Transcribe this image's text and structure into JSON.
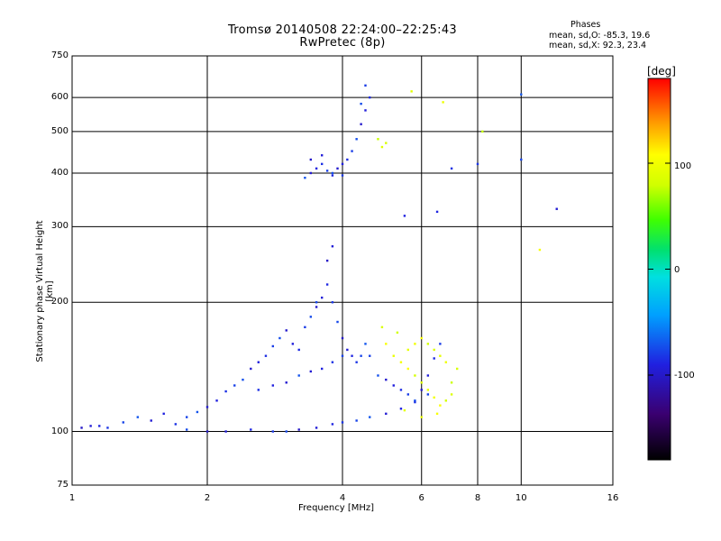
{
  "header": {
    "title_line1": "Tromsø 20140508 22:24:00–22:25:43",
    "title_line2": "RwPretec (8p)",
    "phases_heading": "Phases",
    "phases_O": "mean, sd,O: -85.3, 19.6",
    "phases_X": "mean, sd,X:  92.3, 23.4"
  },
  "colorbar": {
    "unit": "[deg]",
    "ticks": [
      "100",
      "0",
      "-100"
    ],
    "range": [
      -180,
      180
    ]
  },
  "chart_data": {
    "type": "scatter",
    "title": "Tromsø 20140508 22:24:00–22:25:43",
    "subtitle": "RwPretec (8p)",
    "xlabel": "Frequency [MHz]",
    "ylabel": "Stationary phase Virtual Height [km]",
    "xscale": "log",
    "yscale": "log",
    "xlim": [
      1,
      16
    ],
    "ylim": [
      75,
      750
    ],
    "x_ticks": [
      "1",
      "2",
      "4",
      "6",
      "8",
      "10",
      "16"
    ],
    "x_tick_values": [
      1,
      2,
      4,
      6,
      8,
      10,
      16
    ],
    "y_ticks": [
      "75",
      "100",
      "200",
      "300",
      "400",
      "500",
      "600",
      "750"
    ],
    "y_tick_values": [
      75,
      100,
      200,
      300,
      400,
      500,
      600,
      750
    ],
    "grid": true,
    "color_by": "phase [deg]",
    "series": [
      {
        "name": "O-mode",
        "phase_mean": -85.3,
        "phase_sd": 19.6,
        "points": [
          [
            1.05,
            102
          ],
          [
            1.1,
            103
          ],
          [
            1.15,
            103
          ],
          [
            1.2,
            102
          ],
          [
            1.3,
            105
          ],
          [
            1.4,
            108
          ],
          [
            1.5,
            106
          ],
          [
            1.6,
            110
          ],
          [
            1.7,
            104
          ],
          [
            1.8,
            108
          ],
          [
            1.9,
            111
          ],
          [
            2.0,
            114
          ],
          [
            2.1,
            118
          ],
          [
            2.2,
            124
          ],
          [
            2.3,
            128
          ],
          [
            2.4,
            132
          ],
          [
            2.5,
            140
          ],
          [
            2.6,
            145
          ],
          [
            2.7,
            150
          ],
          [
            2.8,
            158
          ],
          [
            2.9,
            165
          ],
          [
            3.0,
            172
          ],
          [
            3.1,
            160
          ],
          [
            3.2,
            155
          ],
          [
            3.3,
            175
          ],
          [
            3.4,
            185
          ],
          [
            3.5,
            195
          ],
          [
            3.6,
            205
          ],
          [
            3.7,
            220
          ],
          [
            3.8,
            200
          ],
          [
            3.9,
            180
          ],
          [
            4.0,
            165
          ],
          [
            4.1,
            155
          ],
          [
            4.2,
            150
          ],
          [
            4.3,
            145
          ],
          [
            4.4,
            150
          ],
          [
            4.5,
            160
          ],
          [
            3.4,
            138
          ],
          [
            3.6,
            140
          ],
          [
            3.8,
            145
          ],
          [
            4.0,
            150
          ],
          [
            3.2,
            135
          ],
          [
            3.0,
            130
          ],
          [
            2.8,
            128
          ],
          [
            2.6,
            125
          ],
          [
            4.6,
            150
          ],
          [
            4.8,
            135
          ],
          [
            5.0,
            132
          ],
          [
            5.2,
            128
          ],
          [
            5.4,
            125
          ],
          [
            5.6,
            122
          ],
          [
            5.8,
            118
          ],
          [
            6.0,
            125
          ],
          [
            6.2,
            135
          ],
          [
            6.4,
            148
          ],
          [
            6.6,
            160
          ],
          [
            1.8,
            101
          ],
          [
            2.0,
            100
          ],
          [
            2.2,
            100
          ],
          [
            2.5,
            101
          ],
          [
            2.8,
            100
          ],
          [
            3.0,
            100
          ],
          [
            3.2,
            101
          ],
          [
            3.5,
            102
          ],
          [
            3.8,
            104
          ],
          [
            4.0,
            105
          ],
          [
            4.3,
            106
          ],
          [
            4.6,
            108
          ],
          [
            5.0,
            110
          ],
          [
            5.4,
            113
          ],
          [
            5.8,
            117
          ],
          [
            6.2,
            122
          ],
          [
            3.3,
            390
          ],
          [
            3.4,
            400
          ],
          [
            3.5,
            410
          ],
          [
            3.6,
            420
          ],
          [
            3.7,
            405
          ],
          [
            3.8,
            400
          ],
          [
            3.9,
            410
          ],
          [
            4.0,
            420
          ],
          [
            4.1,
            430
          ],
          [
            4.2,
            450
          ],
          [
            4.3,
            480
          ],
          [
            4.4,
            520
          ],
          [
            4.5,
            560
          ],
          [
            4.6,
            600
          ],
          [
            4.5,
            640
          ],
          [
            4.4,
            580
          ],
          [
            3.4,
            430
          ],
          [
            3.6,
            440
          ],
          [
            3.8,
            395
          ],
          [
            4.0,
            395
          ],
          [
            3.5,
            200
          ],
          [
            3.7,
            250
          ],
          [
            3.8,
            270
          ],
          [
            6.5,
            325
          ],
          [
            8.0,
            420
          ],
          [
            10.0,
            430
          ],
          [
            10.0,
            610
          ],
          [
            12.0,
            330
          ],
          [
            5.5,
            318
          ],
          [
            7.0,
            410
          ]
        ]
      },
      {
        "name": "X-mode",
        "phase_mean": 92.3,
        "phase_sd": 23.4,
        "points": [
          [
            4.8,
            480
          ],
          [
            5.0,
            470
          ],
          [
            4.9,
            460
          ],
          [
            5.2,
            150
          ],
          [
            5.4,
            145
          ],
          [
            5.6,
            140
          ],
          [
            5.8,
            135
          ],
          [
            6.0,
            130
          ],
          [
            6.2,
            125
          ],
          [
            6.4,
            120
          ],
          [
            6.6,
            115
          ],
          [
            6.8,
            118
          ],
          [
            7.0,
            122
          ],
          [
            5.6,
            155
          ],
          [
            5.8,
            160
          ],
          [
            6.0,
            165
          ],
          [
            6.2,
            160
          ],
          [
            6.4,
            155
          ],
          [
            6.6,
            150
          ],
          [
            6.8,
            145
          ],
          [
            5.0,
            160
          ],
          [
            5.3,
            170
          ],
          [
            4.9,
            175
          ],
          [
            5.5,
            112
          ],
          [
            6.0,
            108
          ],
          [
            6.5,
            110
          ],
          [
            7.0,
            130
          ],
          [
            7.2,
            140
          ],
          [
            5.7,
            620
          ],
          [
            6.7,
            585
          ],
          [
            11.0,
            265
          ],
          [
            8.2,
            500
          ]
        ]
      }
    ]
  }
}
